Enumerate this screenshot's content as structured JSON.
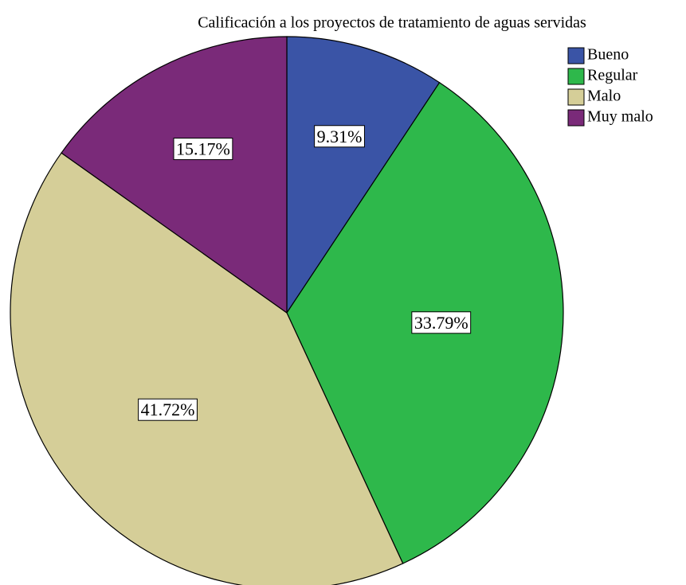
{
  "chart_data": {
    "type": "pie",
    "title": "Calificación a los proyectos de tratamiento de aguas servidas",
    "categories": [
      "Bueno",
      "Regular",
      "Malo",
      "Muy malo"
    ],
    "values": [
      9.31,
      33.79,
      41.72,
      15.17
    ],
    "value_labels": [
      "9.31%",
      "33.79%",
      "41.72%",
      "15.17%"
    ],
    "colors": [
      "#3a54a6",
      "#2eb84b",
      "#d5ce98",
      "#7a2a79"
    ],
    "legend": "top-right"
  }
}
